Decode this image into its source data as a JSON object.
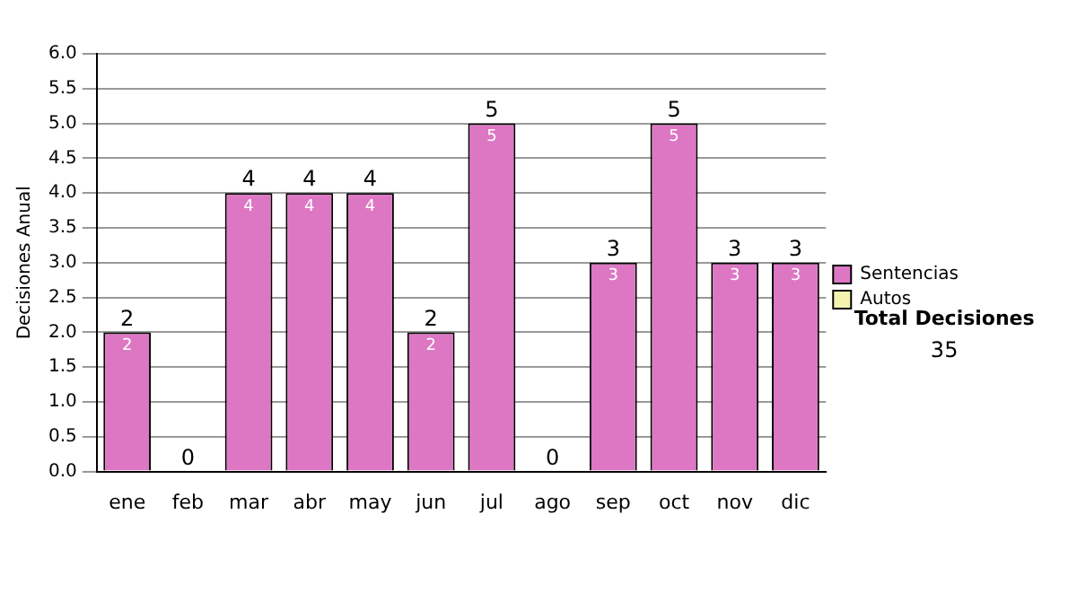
{
  "chart_data": {
    "type": "bar",
    "stacked": true,
    "ylabel": "Decisiones Anual",
    "categories": [
      "ene",
      "feb",
      "mar",
      "abr",
      "may",
      "jun",
      "jul",
      "ago",
      "sep",
      "oct",
      "nov",
      "dic"
    ],
    "series": [
      {
        "name": "Sentencias",
        "color": "#dd77c4",
        "values": [
          2,
          0,
          4,
          4,
          4,
          2,
          5,
          0,
          3,
          5,
          3,
          3
        ],
        "value_labels": [
          "2",
          null,
          "4",
          "4",
          "4",
          "2",
          "5",
          null,
          "3",
          "5",
          "3",
          "3"
        ]
      },
      {
        "name": "Autos",
        "color": "#f4f4b0",
        "values": [
          0,
          0,
          0,
          0,
          0,
          0,
          0,
          0,
          0,
          0,
          0,
          0
        ]
      }
    ],
    "totals": [
      "2",
      "0",
      "4",
      "4",
      "4",
      "2",
      "5",
      "0",
      "3",
      "5",
      "3",
      "3"
    ],
    "ylim": [
      0,
      6
    ],
    "yticks": [
      {
        "value": 0,
        "label": "0.0"
      },
      {
        "value": 0.5,
        "label": "0.5"
      },
      {
        "value": 1,
        "label": "1.0"
      },
      {
        "value": 1.5,
        "label": "1.5"
      },
      {
        "value": 2,
        "label": "2.0"
      },
      {
        "value": 2.5,
        "label": "2.5"
      },
      {
        "value": 3,
        "label": "3.0"
      },
      {
        "value": 3.5,
        "label": "3.5"
      },
      {
        "value": 4,
        "label": "4.0"
      },
      {
        "value": 4.5,
        "label": "4.5"
      },
      {
        "value": 5,
        "label": "5.0"
      },
      {
        "value": 5.5,
        "label": "5.5"
      },
      {
        "value": 6,
        "label": "6.0"
      }
    ],
    "grid": "y",
    "legend": "right",
    "annotations": [
      "Total Decisiones",
      "35"
    ]
  }
}
